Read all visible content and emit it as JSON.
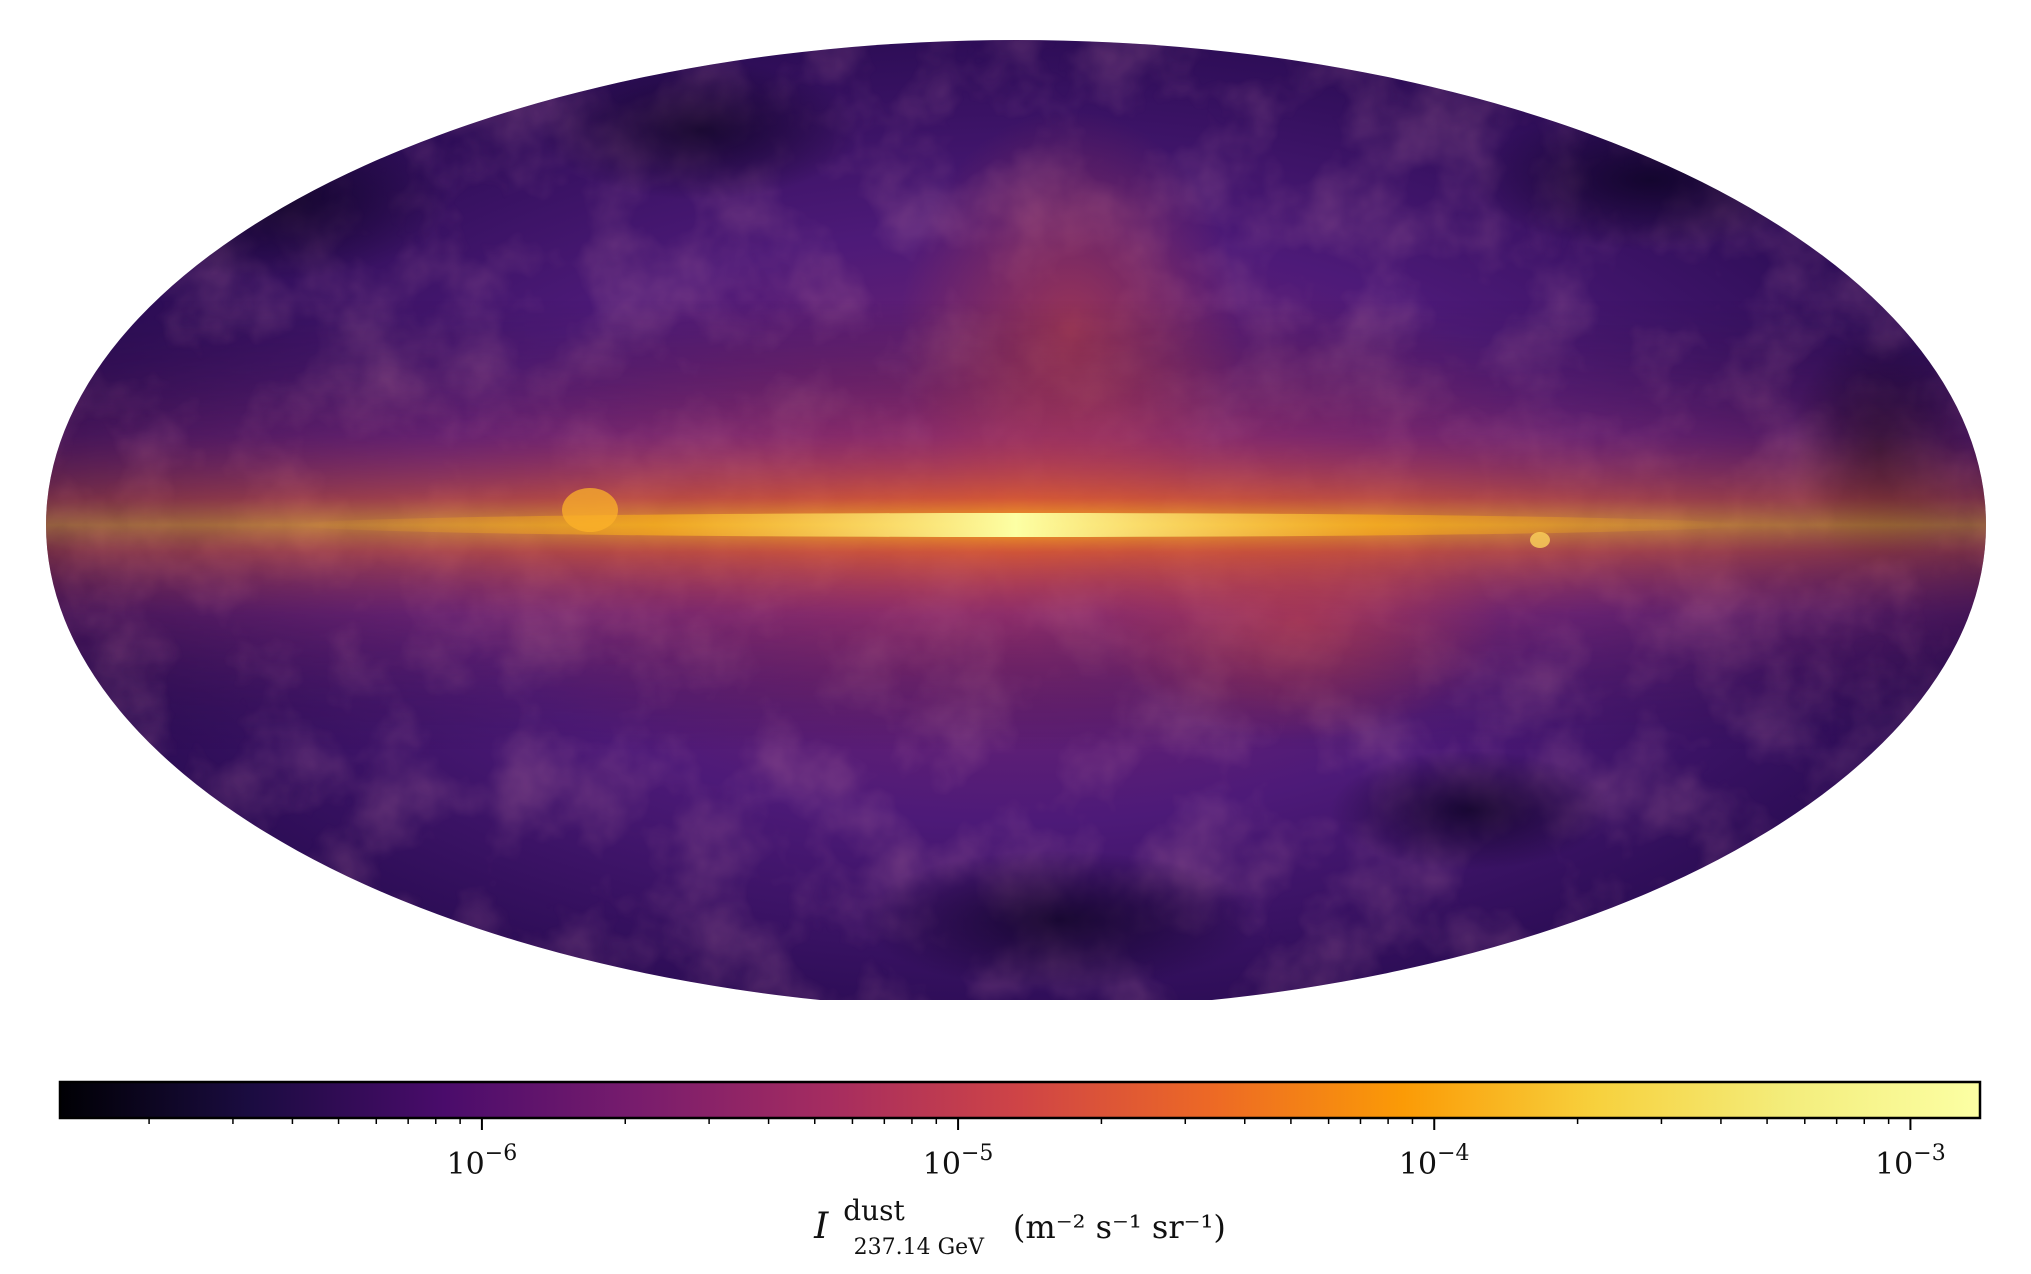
{
  "chart_data": {
    "type": "heatmap",
    "projection": "Mollweide all-sky map",
    "colormap": "inferno",
    "scale": "log",
    "colorbar": {
      "orientation": "horizontal",
      "range": [
        1.3e-07,
        0.0014
      ],
      "major_ticks": [
        {
          "value": 1e-06,
          "base": "10",
          "exp": "−6"
        },
        {
          "value": 1e-05,
          "base": "10",
          "exp": "−5"
        },
        {
          "value": 0.0001,
          "base": "10",
          "exp": "−4"
        },
        {
          "value": 0.001,
          "base": "10",
          "exp": "−3"
        }
      ],
      "label": {
        "symbol": "I",
        "superscript": "dust",
        "subscript": "237.14 GeV",
        "units": "(m⁻² s⁻¹ sr⁻¹)"
      }
    },
    "features": [
      "bright galactic plane along equator",
      "diffuse emission at high latitudes"
    ]
  }
}
